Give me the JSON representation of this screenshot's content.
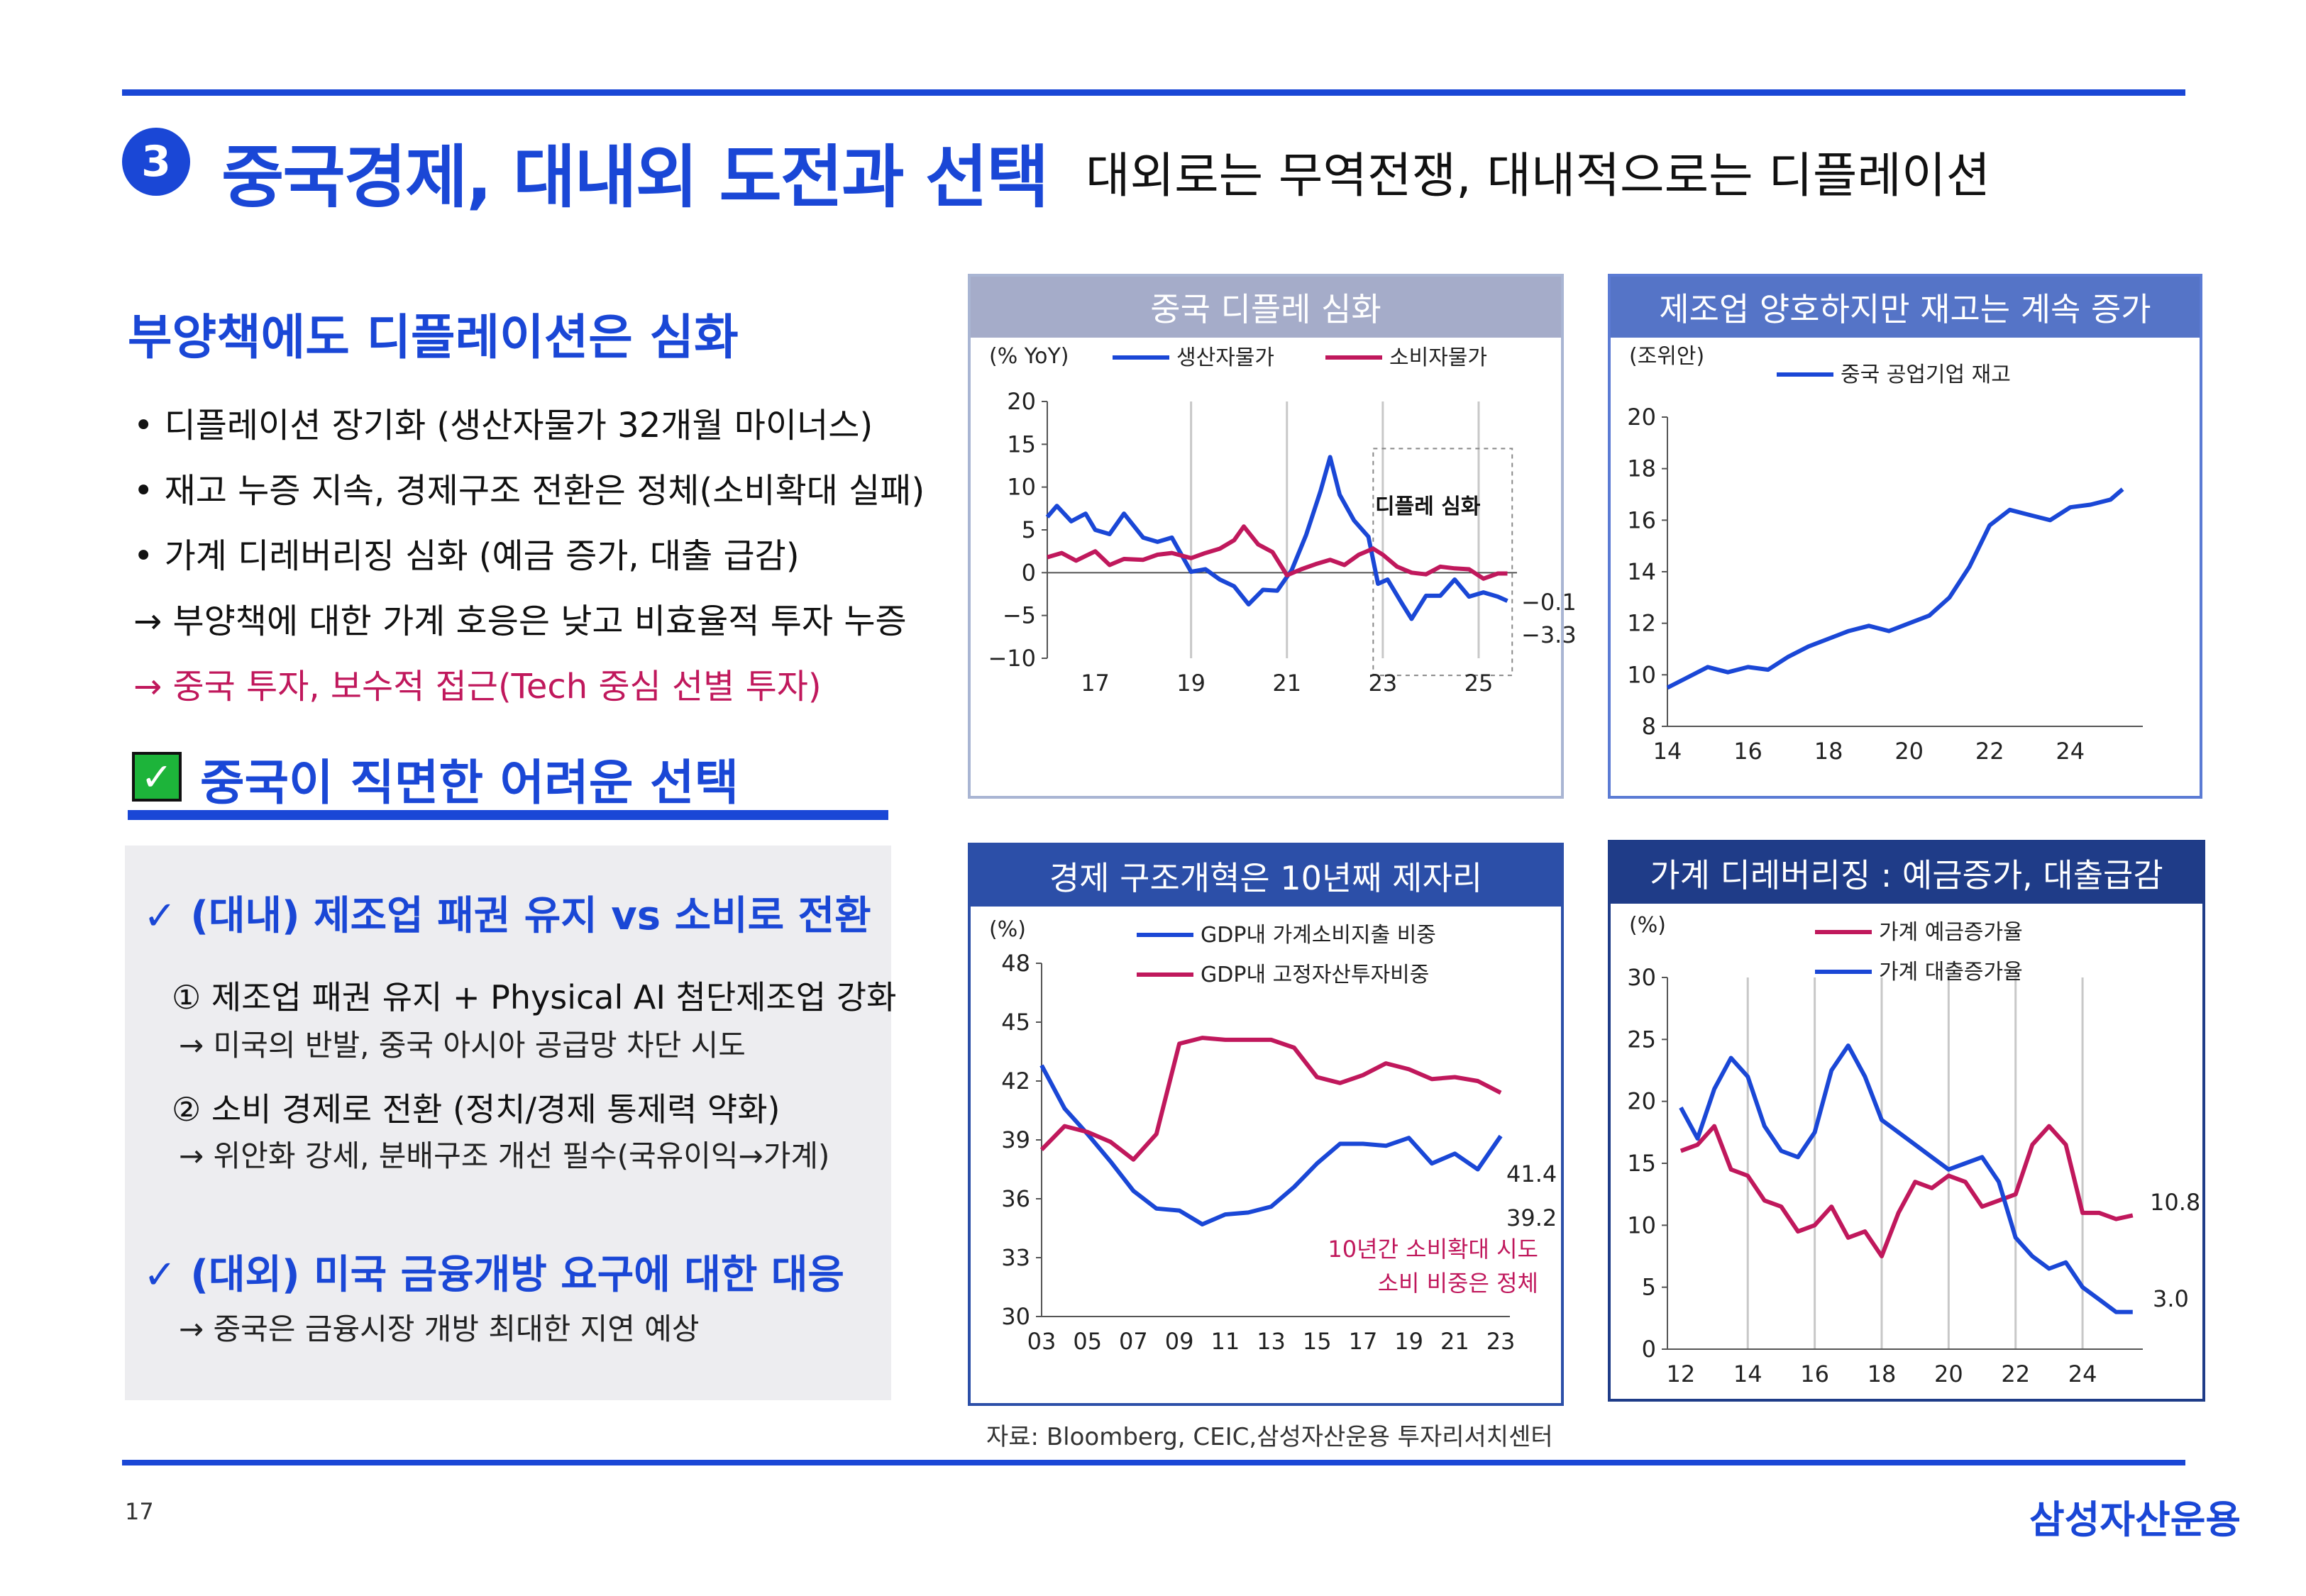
{
  "header": {
    "section_number": "3",
    "title": "중국경제, 대내외 도전과 선택",
    "subtitle": "대외로는 무역전쟁, 대내적으로는 디플레이션"
  },
  "left": {
    "heading": "부양책에도 디플레이션은 심화",
    "bullets": [
      "• 디플레이션 장기화 (생산자물가 32개월 마이너스)",
      "• 재고 누증 지속, 경제구조 전환은 정체(소비확대 실패)",
      "• 가계 디레버리징 심화 (예금 증가, 대출 급감)",
      "→ 부양책에 대한 가계 호응은 낮고 비효율적 투자 누증",
      "→ 중국 투자, 보수적 접근(Tech 중심 선별 투자)"
    ],
    "check_heading": "중국이 직면한 어려운 선택",
    "box": {
      "h1": "(대내) 제조업 패권 유지 vs 소비로 전환",
      "i1": "① 제조업 패권 유지 + Physical AI 첨단제조업 강화",
      "s1": "→ 미국의 반발, 중국 아시아 공급망 차단 시도",
      "i2": "② 소비 경제로 전환 (정치/경제 통제력 약화)",
      "s2": "→ 위안화 강세, 분배구조 개선 필수(국유이익→가계)",
      "h2": "(대외) 미국 금융개방 요구에 대한 대응",
      "s3": "→ 중국은 금융시장 개방 최대한 지연 예상"
    },
    "check_mark": "✓",
    "tick_icon": "✓"
  },
  "chart_data": [
    {
      "type": "line",
      "title": "중국 디플레 심화",
      "unit_label": "(% YoY)",
      "x_ticks": [
        "17",
        "19",
        "21",
        "23",
        "25"
      ],
      "ylim": [
        -10,
        20
      ],
      "y_ticks": [
        20,
        15,
        10,
        5,
        0,
        -5,
        -10
      ],
      "annotation": "디플레 심화",
      "end_labels": [
        "-0.1",
        "-3.3"
      ],
      "series": [
        {
          "name": "생산자물가",
          "color": "#1a47d6",
          "x": [
            2016.0,
            2016.2,
            2016.5,
            2016.8,
            2017.0,
            2017.3,
            2017.6,
            2018.0,
            2018.3,
            2018.6,
            2019.0,
            2019.3,
            2019.6,
            2019.9,
            2020.2,
            2020.5,
            2020.8,
            2021.1,
            2021.4,
            2021.7,
            2021.9,
            2022.1,
            2022.4,
            2022.7,
            2022.9,
            2023.1,
            2023.4,
            2023.6,
            2023.9,
            2024.2,
            2024.5,
            2024.8,
            2025.1,
            2025.4,
            2025.6
          ],
          "values": [
            6.5,
            7.8,
            6.0,
            6.9,
            5.0,
            4.5,
            6.9,
            4.1,
            3.6,
            4.1,
            0.1,
            0.4,
            -0.8,
            -1.6,
            -3.7,
            -2.0,
            -2.1,
            0.3,
            4.4,
            9.5,
            13.5,
            9.1,
            6.1,
            4.2,
            -1.3,
            -0.8,
            -3.6,
            -5.4,
            -2.7,
            -2.7,
            -0.8,
            -2.8,
            -2.3,
            -2.8,
            -3.3
          ]
        },
        {
          "name": "소비자물가",
          "color": "#c0185c",
          "x": [
            2016.0,
            2016.3,
            2016.6,
            2017.0,
            2017.3,
            2017.6,
            2018.0,
            2018.3,
            2018.6,
            2019.0,
            2019.3,
            2019.6,
            2019.9,
            2020.1,
            2020.4,
            2020.7,
            2021.0,
            2021.3,
            2021.6,
            2021.9,
            2022.2,
            2022.5,
            2022.8,
            2023.0,
            2023.3,
            2023.6,
            2023.9,
            2024.2,
            2024.5,
            2024.8,
            2025.1,
            2025.4,
            2025.6
          ],
          "values": [
            1.8,
            2.3,
            1.4,
            2.5,
            0.9,
            1.6,
            1.5,
            2.1,
            2.3,
            1.7,
            2.3,
            2.8,
            3.8,
            5.4,
            3.3,
            2.4,
            -0.3,
            0.4,
            1.0,
            1.5,
            0.9,
            2.1,
            2.8,
            2.1,
            0.7,
            0.0,
            -0.2,
            0.7,
            0.5,
            0.4,
            -0.7,
            -0.1,
            -0.1
          ]
        }
      ]
    },
    {
      "type": "line",
      "title": "제조업 양호하지만 재고는 계속 증가",
      "unit_label": "(조위안)",
      "x_ticks": [
        "14",
        "16",
        "18",
        "20",
        "22",
        "24"
      ],
      "ylim": [
        8,
        20
      ],
      "y_ticks": [
        20,
        18,
        16,
        14,
        12,
        10,
        8
      ],
      "series": [
        {
          "name": "중국 공업기업 재고",
          "color": "#1a47d6",
          "x": [
            2014.0,
            2014.5,
            2015.0,
            2015.5,
            2016.0,
            2016.5,
            2017.0,
            2017.5,
            2018.0,
            2018.5,
            2019.0,
            2019.5,
            2020.0,
            2020.5,
            2021.0,
            2021.5,
            2022.0,
            2022.5,
            2023.0,
            2023.5,
            2024.0,
            2024.5,
            2025.0,
            2025.3
          ],
          "values": [
            9.5,
            9.9,
            10.3,
            10.1,
            10.3,
            10.2,
            10.7,
            11.1,
            11.4,
            11.7,
            11.9,
            11.7,
            12.0,
            12.3,
            13.0,
            14.2,
            15.8,
            16.4,
            16.2,
            16.0,
            16.5,
            16.6,
            16.8,
            17.2
          ]
        }
      ]
    },
    {
      "type": "line",
      "title": "경제 구조개혁은 10년째 제자리",
      "unit_label": "(%)",
      "x_ticks": [
        "03",
        "05",
        "07",
        "09",
        "11",
        "13",
        "15",
        "17",
        "19",
        "21",
        "23"
      ],
      "ylim": [
        30,
        48
      ],
      "y_ticks": [
        48,
        45,
        42,
        39,
        36,
        33,
        30
      ],
      "annotation_line1": "10년간 소비확대 시도",
      "annotation_line2": "소비 비중은 정체",
      "end_labels": [
        "41.4",
        "39.2"
      ],
      "series": [
        {
          "name": "GDP내 가계소비지출 비중",
          "color": "#1a47d6",
          "x": [
            2003,
            2004,
            2005,
            2006,
            2007,
            2008,
            2009,
            2010,
            2011,
            2012,
            2013,
            2014,
            2015,
            2016,
            2017,
            2018,
            2019,
            2020,
            2021,
            2022,
            2023
          ],
          "values": [
            42.8,
            40.6,
            39.3,
            37.9,
            36.4,
            35.5,
            35.4,
            34.7,
            35.2,
            35.3,
            35.6,
            36.6,
            37.8,
            38.8,
            38.8,
            38.7,
            39.1,
            37.8,
            38.3,
            37.5,
            39.2
          ]
        },
        {
          "name": "GDP내 고정자산투자비중",
          "color": "#c0185c",
          "x": [
            2003,
            2004,
            2005,
            2006,
            2007,
            2008,
            2009,
            2010,
            2011,
            2012,
            2013,
            2014,
            2015,
            2016,
            2017,
            2018,
            2019,
            2020,
            2021,
            2022,
            2023
          ],
          "values": [
            38.5,
            39.7,
            39.4,
            38.9,
            38.0,
            39.3,
            43.9,
            44.2,
            44.1,
            44.1,
            44.1,
            43.7,
            42.2,
            41.9,
            42.3,
            42.9,
            42.6,
            42.1,
            42.2,
            42.0,
            41.4
          ]
        }
      ]
    },
    {
      "type": "line",
      "title": "가계 디레버리징 : 예금증가, 대출급감",
      "unit_label": "(%)",
      "x_ticks": [
        "12",
        "14",
        "16",
        "18",
        "20",
        "22",
        "24"
      ],
      "ylim": [
        0,
        30
      ],
      "y_ticks": [
        30,
        25,
        20,
        15,
        10,
        5,
        0
      ],
      "end_labels": [
        "10.8",
        "3.0"
      ],
      "series": [
        {
          "name": "가계 예금증가율",
          "color": "#c0185c",
          "x": [
            2012.0,
            2012.5,
            2013.0,
            2013.5,
            2014.0,
            2014.5,
            2015.0,
            2015.5,
            2016.0,
            2016.5,
            2017.0,
            2017.5,
            2018.0,
            2018.5,
            2019.0,
            2019.5,
            2020.0,
            2020.5,
            2021.0,
            2021.5,
            2022.0,
            2022.5,
            2023.0,
            2023.5,
            2024.0,
            2024.5,
            2025.0,
            2025.5
          ],
          "values": [
            16.0,
            16.5,
            18.0,
            14.5,
            14.0,
            12.0,
            11.5,
            9.5,
            10.0,
            11.5,
            9.0,
            9.5,
            7.5,
            11.0,
            13.5,
            13.0,
            14.0,
            13.5,
            11.5,
            12.0,
            12.5,
            16.5,
            18.0,
            16.5,
            11.0,
            11.0,
            10.5,
            10.8
          ]
        },
        {
          "name": "가계 대출증가율",
          "color": "#1a47d6",
          "x": [
            2012.0,
            2012.5,
            2013.0,
            2013.5,
            2014.0,
            2014.5,
            2015.0,
            2015.5,
            2016.0,
            2016.5,
            2017.0,
            2017.5,
            2018.0,
            2018.5,
            2019.0,
            2019.5,
            2020.0,
            2020.5,
            2021.0,
            2021.5,
            2022.0,
            2022.5,
            2023.0,
            2023.5,
            2024.0,
            2024.5,
            2025.0,
            2025.5
          ],
          "values": [
            19.5,
            17.0,
            21.0,
            23.5,
            22.0,
            18.0,
            16.0,
            15.5,
            17.5,
            22.5,
            24.5,
            22.0,
            18.5,
            17.5,
            16.5,
            15.5,
            14.5,
            15.0,
            15.5,
            13.5,
            9.0,
            7.5,
            6.5,
            7.0,
            5.0,
            4.0,
            3.0,
            3.0
          ]
        }
      ]
    }
  ],
  "footer": {
    "source": "자료: Bloomberg, CEIC,삼성자산운용 투자리서치센터",
    "page_number": "17",
    "brand": "삼성자산운용"
  }
}
